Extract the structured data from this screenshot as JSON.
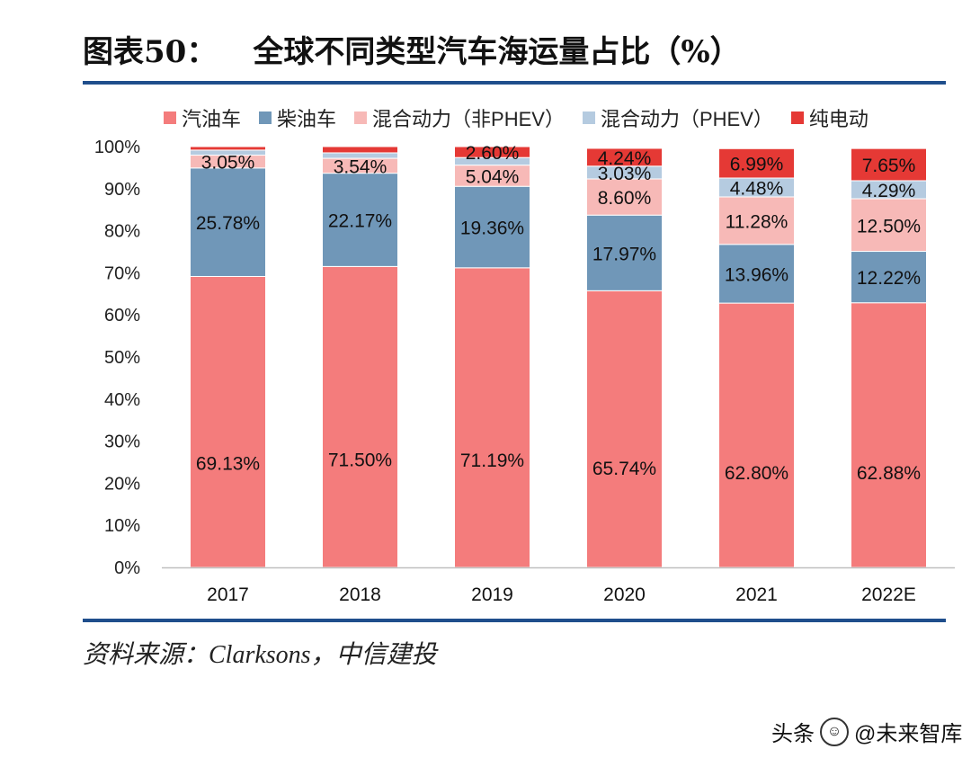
{
  "header": {
    "figure_label": "图表50：",
    "title": "全球不同类型汽车海运量占比（%）"
  },
  "source": "资料来源：Clarksons，中信建投",
  "watermark": {
    "prefix": "头条",
    "icon": "wechat-icon",
    "name": "@未来智库"
  },
  "chart_data": {
    "type": "bar",
    "stacked": true,
    "categories": [
      "2017",
      "2018",
      "2019",
      "2020",
      "2021",
      "2022E"
    ],
    "series": [
      {
        "name": "汽油车",
        "color": "#f47c7c",
        "values": [
          69.13,
          71.5,
          71.19,
          65.74,
          62.8,
          62.88
        ]
      },
      {
        "name": "柴油车",
        "color": "#7097b8",
        "values": [
          25.78,
          22.17,
          19.36,
          17.97,
          13.96,
          12.22
        ]
      },
      {
        "name": "混合动力（非PHEV）",
        "color": "#f7b9b7",
        "values": [
          3.05,
          3.54,
          5.04,
          8.6,
          11.28,
          12.5
        ]
      },
      {
        "name": "混合动力（PHEV）",
        "color": "#b5cbe0",
        "values": [
          1.2,
          1.3,
          1.8,
          3.03,
          4.48,
          4.29
        ]
      },
      {
        "name": "纯电动",
        "color": "#e53935",
        "values": [
          0.84,
          1.49,
          2.6,
          4.24,
          6.99,
          7.65
        ]
      }
    ],
    "data_labels": [
      [
        "69.13%",
        "71.50%",
        "71.19%",
        "65.74%",
        "62.80%",
        "62.88%"
      ],
      [
        "25.78%",
        "22.17%",
        "19.36%",
        "17.97%",
        "13.96%",
        "12.22%"
      ],
      [
        "3.05%",
        "3.54%",
        "5.04%",
        "8.60%",
        "11.28%",
        "12.50%"
      ],
      [
        "",
        "",
        "",
        "3.03%",
        "4.48%",
        "4.29%"
      ],
      [
        "",
        "",
        "2.60%",
        "4.24%",
        "6.99%",
        "7.65%"
      ]
    ],
    "y_ticks": [
      "0%",
      "10%",
      "20%",
      "30%",
      "40%",
      "50%",
      "60%",
      "70%",
      "80%",
      "90%",
      "100%"
    ],
    "ylim": [
      0,
      100
    ],
    "legend_position": "top",
    "grid": false
  }
}
